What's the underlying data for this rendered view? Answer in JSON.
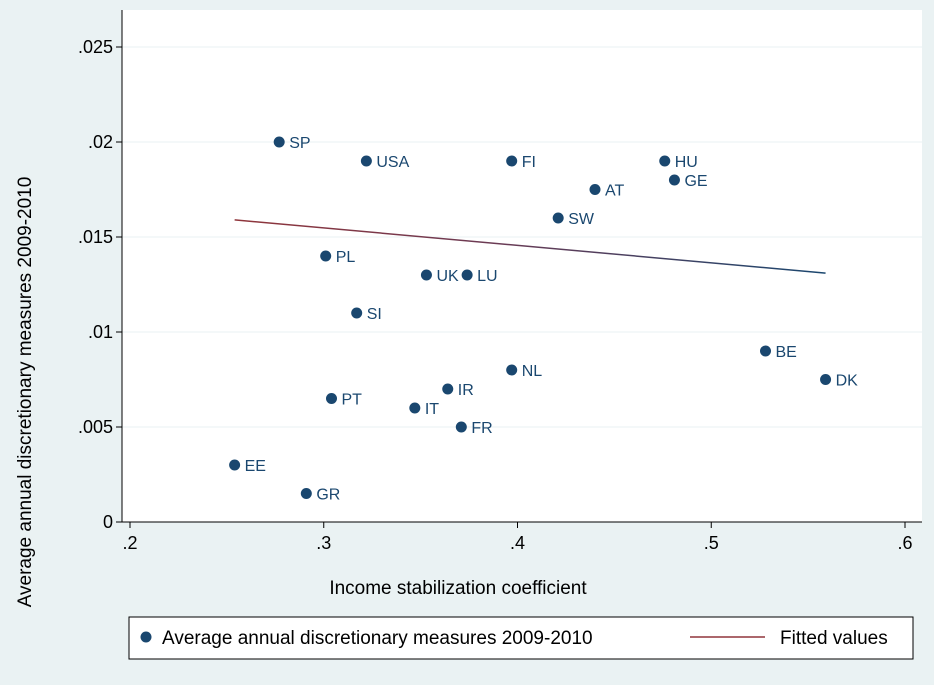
{
  "chart_data": {
    "type": "scatter",
    "xlabel": "Income stabilization coefficient",
    "ylabel": "Average annual discretionary measures 2009-2010",
    "xlim": [
      0.2,
      0.6
    ],
    "ylim": [
      0,
      0.025
    ],
    "x_ticks": [
      {
        "value": 0.2,
        "label": ".2"
      },
      {
        "value": 0.3,
        "label": ".3"
      },
      {
        "value": 0.4,
        "label": ".4"
      },
      {
        "value": 0.5,
        "label": ".5"
      },
      {
        "value": 0.6,
        "label": ".6"
      }
    ],
    "y_ticks": [
      {
        "value": 0,
        "label": "0"
      },
      {
        "value": 0.005,
        "label": ".005"
      },
      {
        "value": 0.01,
        "label": ".01"
      },
      {
        "value": 0.015,
        "label": ".015"
      },
      {
        "value": 0.02,
        "label": ".02"
      },
      {
        "value": 0.025,
        "label": ".025"
      }
    ],
    "grid": "horizontal",
    "legend_position": "bottom",
    "series": [
      {
        "name": "Average annual discretionary measures 2009-2010",
        "type": "scatter",
        "color": "#1a476f",
        "points": [
          {
            "label": "SP",
            "x": 0.277,
            "y": 0.02
          },
          {
            "label": "USA",
            "x": 0.322,
            "y": 0.019
          },
          {
            "label": "FI",
            "x": 0.397,
            "y": 0.019
          },
          {
            "label": "HU",
            "x": 0.476,
            "y": 0.019
          },
          {
            "label": "GE",
            "x": 0.481,
            "y": 0.018
          },
          {
            "label": "AT",
            "x": 0.44,
            "y": 0.0175
          },
          {
            "label": "SW",
            "x": 0.421,
            "y": 0.016
          },
          {
            "label": "PL",
            "x": 0.301,
            "y": 0.014
          },
          {
            "label": "UK",
            "x": 0.353,
            "y": 0.013
          },
          {
            "label": "LU",
            "x": 0.374,
            "y": 0.013
          },
          {
            "label": "SI",
            "x": 0.317,
            "y": 0.011
          },
          {
            "label": "BE",
            "x": 0.528,
            "y": 0.009
          },
          {
            "label": "NL",
            "x": 0.397,
            "y": 0.008
          },
          {
            "label": "DK",
            "x": 0.559,
            "y": 0.0075
          },
          {
            "label": "IR",
            "x": 0.364,
            "y": 0.007
          },
          {
            "label": "PT",
            "x": 0.304,
            "y": 0.0065
          },
          {
            "label": "IT",
            "x": 0.347,
            "y": 0.006
          },
          {
            "label": "FR",
            "x": 0.371,
            "y": 0.005
          },
          {
            "label": "EE",
            "x": 0.254,
            "y": 0.003
          },
          {
            "label": "GR",
            "x": 0.291,
            "y": 0.0015
          }
        ]
      },
      {
        "name": "Fitted values",
        "type": "line",
        "color": "#90353b",
        "colors_along_line": [
          "#90353b",
          "#1a476f"
        ],
        "points": [
          {
            "x": 0.254,
            "y": 0.0159
          },
          {
            "x": 0.559,
            "y": 0.0131
          }
        ]
      }
    ]
  }
}
